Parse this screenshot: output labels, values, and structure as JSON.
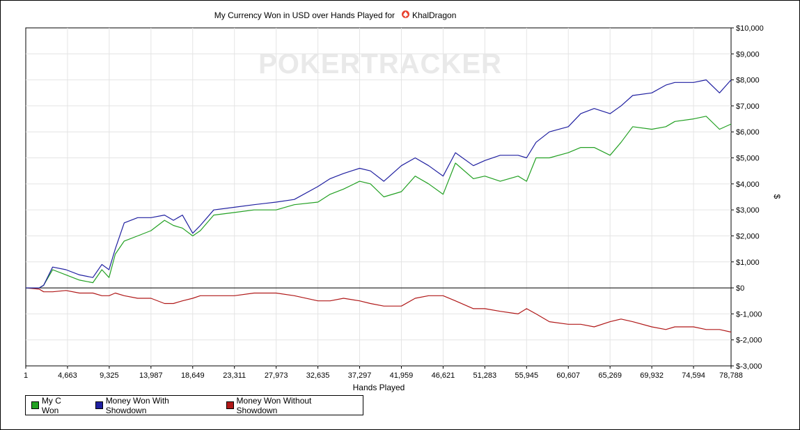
{
  "chart_data": {
    "type": "line",
    "title_prefix": "My Currency Won in USD over Hands Played for",
    "title_player": "KhalDragon",
    "xlabel": "Hands Played",
    "ylabel": "$",
    "watermark": "POKERTRACKER",
    "xlim": [
      1,
      78788
    ],
    "ylim": [
      -3000,
      10000
    ],
    "x_ticks": [
      1,
      4663,
      9325,
      13987,
      18649,
      23311,
      27973,
      32635,
      37297,
      41959,
      46621,
      51283,
      55945,
      60607,
      65269,
      69932,
      74594,
      78788
    ],
    "x_tick_labels": [
      "1",
      "4,663",
      "9,325",
      "13,987",
      "18,649",
      "23,311",
      "27,973",
      "32,635",
      "37,297",
      "41,959",
      "46,621",
      "51,283",
      "55,945",
      "60,607",
      "65,269",
      "69,932",
      "74,594",
      "78,788"
    ],
    "y_ticks": [
      -3000,
      -2000,
      -1000,
      0,
      1000,
      2000,
      3000,
      4000,
      5000,
      6000,
      7000,
      8000,
      9000,
      10000
    ],
    "y_tick_labels": [
      "$-3,000",
      "$-2,000",
      "$-1,000",
      "$0",
      "$1,000",
      "$2,000",
      "$3,000",
      "$4,000",
      "$5,000",
      "$6,000",
      "$7,000",
      "$8,000",
      "$9,000",
      "$10,000"
    ],
    "grid": true,
    "legend_position": "bottom-left",
    "series": [
      {
        "name": "My C Won",
        "color": "#22a022",
        "x": [
          1,
          1500,
          2000,
          3000,
          4500,
          6000,
          7500,
          8500,
          9300,
          10000,
          11000,
          12500,
          13987,
          15500,
          16500,
          17500,
          18649,
          19500,
          21000,
          23311,
          25500,
          27973,
          30000,
          32635,
          34000,
          35500,
          37297,
          38500,
          40000,
          41959,
          43500,
          45000,
          46621,
          48000,
          50000,
          51283,
          53000,
          55000,
          55945,
          57000,
          58500,
          60607,
          62000,
          63500,
          65269,
          66500,
          67800,
          69932,
          71500,
          72500,
          74594,
          76000,
          77500,
          78788
        ],
        "y": [
          0,
          0,
          100,
          700,
          500,
          300,
          200,
          700,
          400,
          1300,
          1800,
          2000,
          2200,
          2600,
          2400,
          2300,
          2000,
          2200,
          2800,
          2900,
          3000,
          3000,
          3200,
          3300,
          3600,
          3800,
          4100,
          4000,
          3500,
          3700,
          4300,
          4000,
          3600,
          4800,
          4200,
          4300,
          4100,
          4300,
          4100,
          5000,
          5000,
          5200,
          5400,
          5400,
          5100,
          5600,
          6200,
          6100,
          6200,
          6400,
          6500,
          6600,
          6100,
          6300
        ]
      },
      {
        "name": "Money Won With Showdown",
        "color": "#1f1fa0",
        "x": [
          1,
          1500,
          2000,
          3000,
          4500,
          6000,
          7500,
          8500,
          9300,
          10000,
          11000,
          12500,
          13987,
          15500,
          16500,
          17500,
          18649,
          19500,
          21000,
          23311,
          25500,
          27973,
          30000,
          32635,
          34000,
          35500,
          37297,
          38500,
          40000,
          41959,
          43500,
          45000,
          46621,
          48000,
          50000,
          51283,
          53000,
          55000,
          55945,
          57000,
          58500,
          60607,
          62000,
          63500,
          65269,
          66500,
          67800,
          69932,
          71500,
          72500,
          74594,
          76000,
          77500,
          78788
        ],
        "y": [
          0,
          0,
          100,
          800,
          700,
          500,
          400,
          900,
          700,
          1500,
          2500,
          2700,
          2700,
          2800,
          2600,
          2800,
          2100,
          2400,
          3000,
          3100,
          3200,
          3300,
          3400,
          3900,
          4200,
          4400,
          4600,
          4500,
          4100,
          4700,
          5000,
          4700,
          4300,
          5200,
          4700,
          4900,
          5100,
          5100,
          5000,
          5600,
          6000,
          6200,
          6700,
          6900,
          6700,
          7000,
          7400,
          7500,
          7800,
          7900,
          7900,
          8000,
          7500,
          8000
        ]
      },
      {
        "name": "Money Won Without Showdown",
        "color": "#b01818",
        "x": [
          1,
          1500,
          2000,
          3000,
          4500,
          6000,
          7500,
          8500,
          9300,
          10000,
          11000,
          12500,
          13987,
          15500,
          16500,
          17500,
          18649,
          19500,
          21000,
          23311,
          25500,
          27973,
          30000,
          32635,
          34000,
          35500,
          37297,
          38500,
          40000,
          41959,
          43500,
          45000,
          46621,
          48000,
          50000,
          51283,
          53000,
          55000,
          55945,
          57000,
          58500,
          60607,
          62000,
          63500,
          65269,
          66500,
          67800,
          69932,
          71500,
          72500,
          74594,
          76000,
          77500,
          78788
        ],
        "y": [
          0,
          -50,
          -150,
          -150,
          -100,
          -200,
          -200,
          -300,
          -300,
          -200,
          -300,
          -400,
          -400,
          -600,
          -600,
          -500,
          -400,
          -300,
          -300,
          -300,
          -200,
          -200,
          -300,
          -500,
          -500,
          -400,
          -500,
          -600,
          -700,
          -700,
          -400,
          -300,
          -300,
          -500,
          -800,
          -800,
          -900,
          -1000,
          -800,
          -1000,
          -1300,
          -1400,
          -1400,
          -1500,
          -1300,
          -1200,
          -1300,
          -1500,
          -1600,
          -1500,
          -1500,
          -1600,
          -1600,
          -1700
        ]
      }
    ]
  }
}
